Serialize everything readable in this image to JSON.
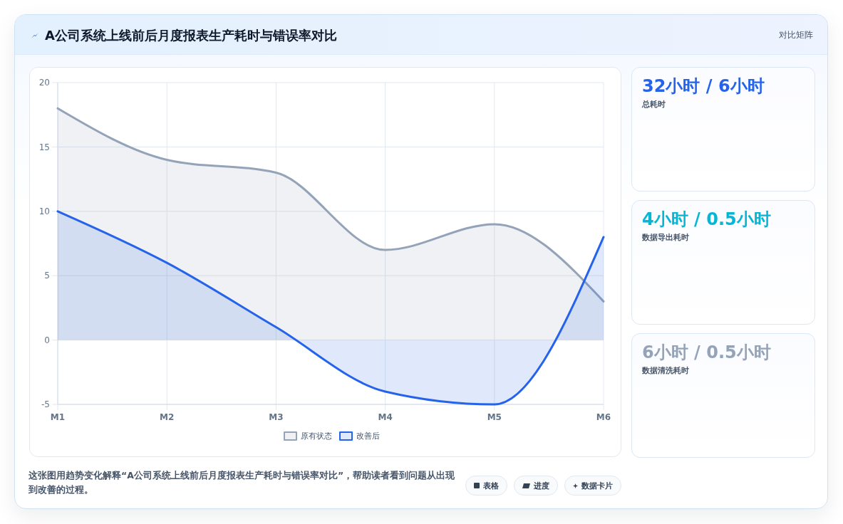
{
  "chart_data": [
    {
      "type": "area",
      "title": "A公司系统上线前后月度报表生产耗时与错误率对比",
      "categories": [
        "M1",
        "M2",
        "M3",
        "M4",
        "M5",
        "M6"
      ],
      "series": [
        {
          "name": "原有状态",
          "color": "#94a3b8",
          "values": [
            18,
            14,
            13,
            7,
            9,
            3
          ]
        },
        {
          "name": "改善后",
          "color": "#2563eb",
          "values": [
            10,
            6,
            1,
            -4,
            -5,
            8
          ]
        }
      ],
      "ylim": [
        -5,
        20
      ],
      "yticks": [
        -5,
        0,
        5,
        10,
        15,
        20
      ],
      "grid": true,
      "legend": "bottom",
      "annotations": [
        "对比矩阵",
        "这张图用趋势变化解释“A公司系统上线前后月度报表生产耗时与错误率对比”，帮助读者看到问题从出现到改善的过程。",
        "表格",
        "进度",
        "数据卡片"
      ]
    },
    {
      "type": "other",
      "annotations": [
        "32小时 / 6小时",
        "总耗时"
      ]
    },
    {
      "type": "other",
      "annotations": [
        "4小时 / 0.5小时",
        "数据导出耗时"
      ]
    },
    {
      "type": "other",
      "annotations": [
        "6小时 / 0.5小时",
        "数据清洗耗时"
      ]
    }
  ]
}
